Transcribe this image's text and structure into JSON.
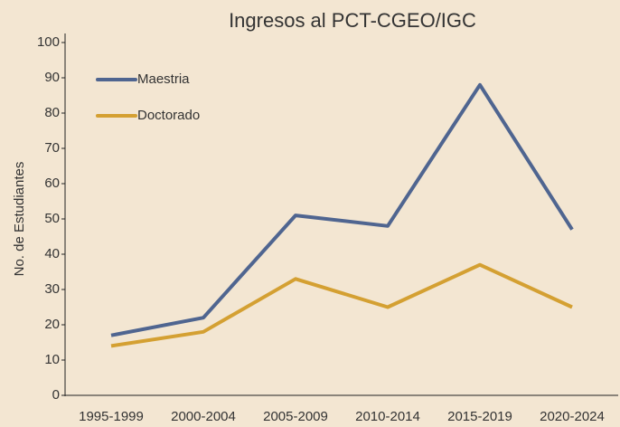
{
  "chart_data": {
    "type": "line",
    "title": "Ingresos al PCT-CGEO/IGC",
    "ylabel": "No. de Estudiantes",
    "categories": [
      "1995-1999",
      "2000-2004",
      "2005-2009",
      "2010-2014",
      "2015-2019",
      "2020-2024"
    ],
    "series": [
      {
        "name": "Maestria",
        "color": "#4f6590",
        "values": [
          17,
          22,
          51,
          48,
          88,
          47
        ]
      },
      {
        "name": "Doctorado",
        "color": "#d4a032",
        "values": [
          14,
          18,
          33,
          25,
          37,
          25
        ]
      }
    ],
    "ylim": [
      0,
      100
    ],
    "yticks": [
      0,
      10,
      20,
      30,
      40,
      50,
      60,
      70,
      80,
      90,
      100
    ],
    "grid": false,
    "legend": "upper left"
  }
}
